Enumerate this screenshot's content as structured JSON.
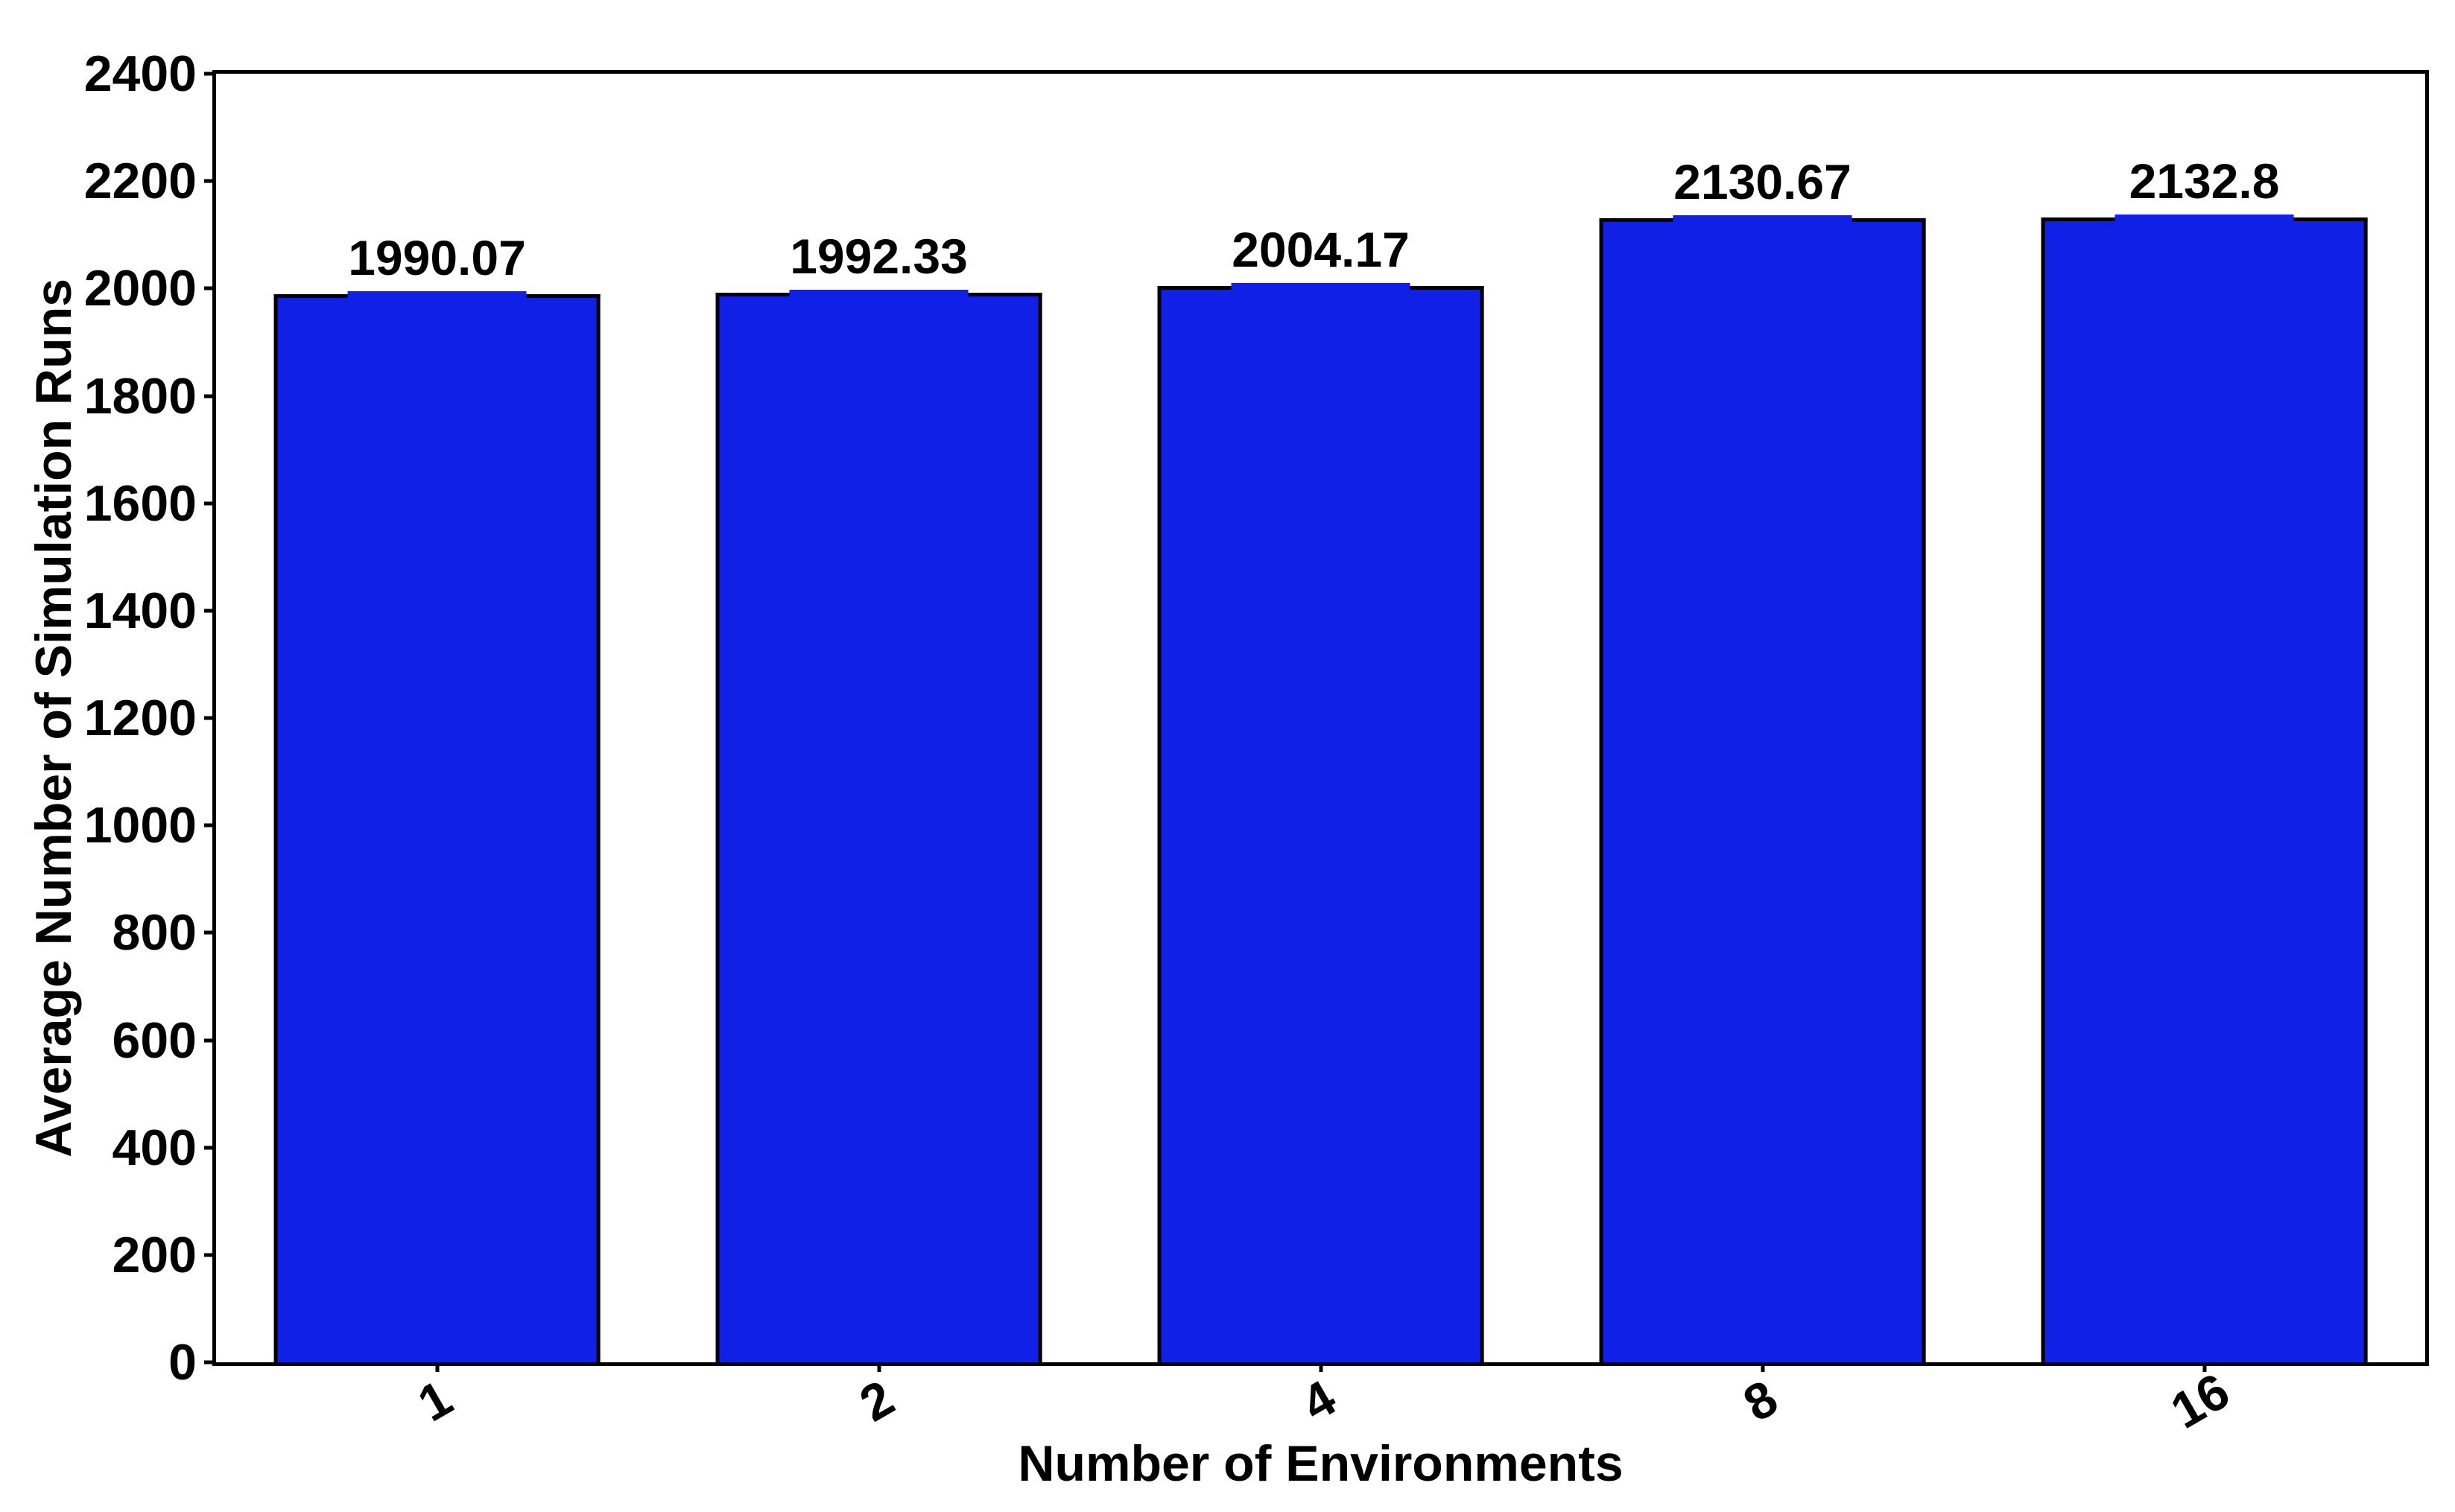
{
  "chart_data": {
    "type": "bar",
    "title": "",
    "xlabel": "Number of Environments",
    "ylabel": "Average Number of Simulation Runs",
    "categories": [
      "1",
      "2",
      "4",
      "8",
      "16"
    ],
    "values": [
      1990.07,
      1992.33,
      2004.17,
      2130.67,
      2132.8
    ],
    "bar_labels": [
      "1990.07",
      "1992.33",
      "2004.17",
      "2130.67",
      "2132.8"
    ],
    "ylim": [
      0,
      2400
    ],
    "y_tick_step": 200,
    "y_ticks": [
      0,
      200,
      400,
      600,
      800,
      1000,
      1200,
      1400,
      1600,
      1800,
      2000,
      2200,
      2400
    ],
    "x_tick_rotation_deg": 30,
    "grid": false,
    "colors": {
      "bar_fill": "#1120E7",
      "bar_edge": "#000000",
      "axis": "#000000",
      "text": "#000000",
      "background": "#ffffff"
    }
  }
}
